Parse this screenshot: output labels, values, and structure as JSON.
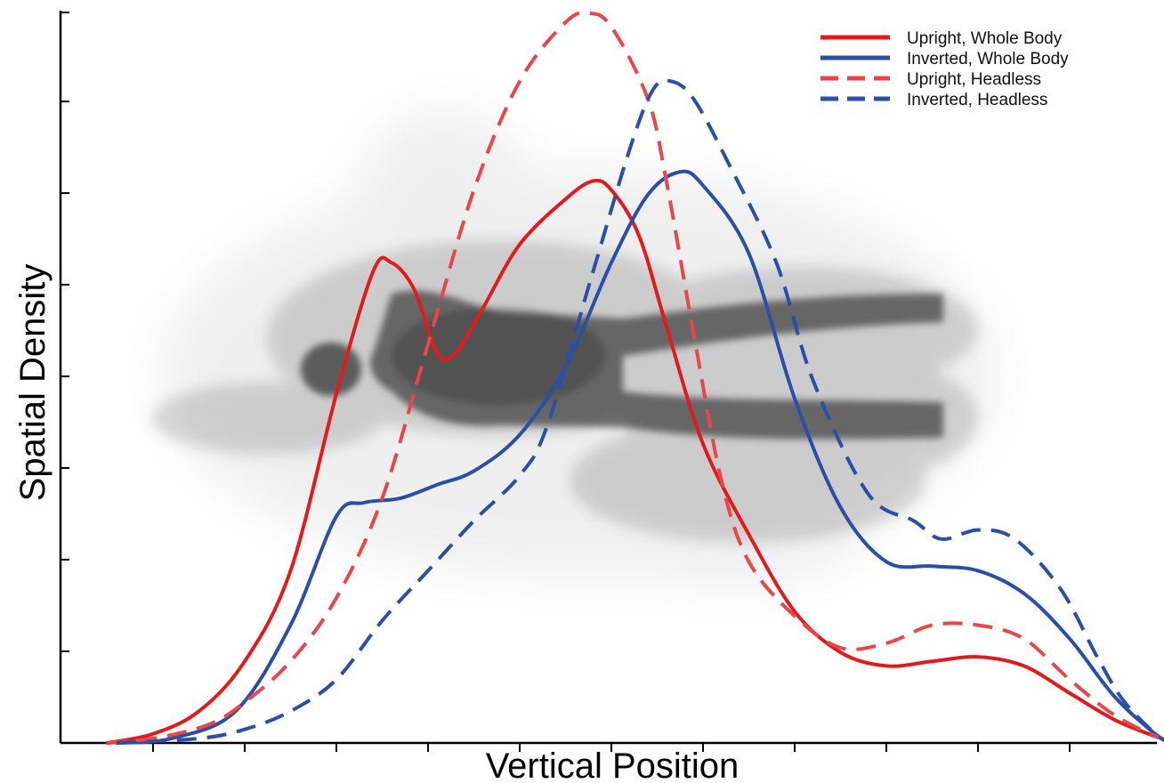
{
  "chart_data": {
    "type": "line",
    "xlabel": "Vertical Position",
    "ylabel": "Spatial Density",
    "x_ticks": [
      "",
      "",
      "",
      "",
      "",
      "",
      "",
      "",
      "",
      "",
      ""
    ],
    "y_ticks": [
      "",
      "",
      "",
      "",
      "",
      "",
      ""
    ],
    "xlim": [
      -0.5,
      11.3
    ],
    "ylim": [
      0,
      8
    ],
    "grid": false,
    "legend_position": "top-right",
    "background_image": "human-body-silhouette-density-heatmap",
    "series": [
      {
        "name": "Upright, Whole Body",
        "color": "#e31a1c",
        "style": "solid",
        "points": [
          [
            -0.5,
            0.0
          ],
          [
            0.0,
            0.1
          ],
          [
            0.5,
            0.35
          ],
          [
            1.0,
            0.9
          ],
          [
            1.5,
            1.9
          ],
          [
            2.0,
            3.85
          ],
          [
            2.4,
            5.2
          ],
          [
            2.6,
            5.3
          ],
          [
            2.85,
            5.0
          ],
          [
            3.1,
            4.3
          ],
          [
            3.3,
            4.3
          ],
          [
            3.6,
            4.8
          ],
          [
            4.0,
            5.5
          ],
          [
            4.5,
            6.0
          ],
          [
            4.8,
            6.2
          ],
          [
            5.0,
            6.1
          ],
          [
            5.3,
            5.6
          ],
          [
            5.6,
            4.6
          ],
          [
            6.0,
            3.3
          ],
          [
            6.5,
            2.3
          ],
          [
            7.0,
            1.45
          ],
          [
            7.5,
            1.0
          ],
          [
            8.0,
            0.85
          ],
          [
            8.5,
            0.9
          ],
          [
            9.0,
            0.95
          ],
          [
            9.5,
            0.85
          ],
          [
            10.0,
            0.55
          ],
          [
            10.5,
            0.25
          ],
          [
            11.0,
            0.05
          ],
          [
            11.2,
            0.0
          ]
        ]
      },
      {
        "name": "Inverted, Whole Body",
        "color": "#2b4fa6",
        "style": "solid",
        "points": [
          [
            -0.4,
            0.0
          ],
          [
            0.2,
            0.05
          ],
          [
            0.9,
            0.35
          ],
          [
            1.5,
            1.3
          ],
          [
            2.0,
            2.5
          ],
          [
            2.3,
            2.65
          ],
          [
            2.7,
            2.7
          ],
          [
            3.1,
            2.85
          ],
          [
            3.5,
            3.0
          ],
          [
            4.0,
            3.4
          ],
          [
            4.5,
            4.15
          ],
          [
            5.0,
            5.3
          ],
          [
            5.4,
            6.05
          ],
          [
            5.75,
            6.3
          ],
          [
            6.0,
            6.15
          ],
          [
            6.5,
            5.4
          ],
          [
            7.0,
            3.8
          ],
          [
            7.5,
            2.6
          ],
          [
            8.0,
            2.0
          ],
          [
            8.5,
            1.95
          ],
          [
            9.0,
            1.9
          ],
          [
            9.5,
            1.65
          ],
          [
            10.0,
            1.15
          ],
          [
            10.5,
            0.5
          ],
          [
            11.0,
            0.05
          ],
          [
            11.2,
            0.0
          ]
        ]
      },
      {
        "name": "Upright, Headless",
        "color": "#e8474a",
        "style": "dashed",
        "points": [
          [
            -0.5,
            0.0
          ],
          [
            0.0,
            0.05
          ],
          [
            0.6,
            0.2
          ],
          [
            1.0,
            0.45
          ],
          [
            1.5,
            0.9
          ],
          [
            2.0,
            1.6
          ],
          [
            2.5,
            2.7
          ],
          [
            3.0,
            4.4
          ],
          [
            3.5,
            6.1
          ],
          [
            4.0,
            7.3
          ],
          [
            4.5,
            7.95
          ],
          [
            4.75,
            8.05
          ],
          [
            5.0,
            7.9
          ],
          [
            5.4,
            7.1
          ],
          [
            5.6,
            6.2
          ],
          [
            5.9,
            4.5
          ],
          [
            6.2,
            2.9
          ],
          [
            6.5,
            2.0
          ],
          [
            7.0,
            1.4
          ],
          [
            7.5,
            1.05
          ],
          [
            8.0,
            1.1
          ],
          [
            8.5,
            1.3
          ],
          [
            9.0,
            1.3
          ],
          [
            9.5,
            1.15
          ],
          [
            10.0,
            0.7
          ],
          [
            10.5,
            0.3
          ],
          [
            11.0,
            0.05
          ],
          [
            11.2,
            0.0
          ]
        ]
      },
      {
        "name": "Inverted, Headless",
        "color": "#2b4fa6",
        "style": "dashed",
        "points": [
          [
            -0.4,
            0.0
          ],
          [
            0.5,
            0.05
          ],
          [
            1.0,
            0.15
          ],
          [
            1.5,
            0.35
          ],
          [
            2.0,
            0.7
          ],
          [
            2.5,
            1.35
          ],
          [
            3.0,
            1.9
          ],
          [
            3.5,
            2.45
          ],
          [
            4.0,
            2.95
          ],
          [
            4.3,
            3.5
          ],
          [
            4.8,
            5.2
          ],
          [
            5.2,
            6.55
          ],
          [
            5.45,
            7.2
          ],
          [
            5.65,
            7.3
          ],
          [
            5.9,
            7.1
          ],
          [
            6.3,
            6.35
          ],
          [
            6.8,
            5.3
          ],
          [
            7.2,
            4.0
          ],
          [
            7.8,
            2.75
          ],
          [
            8.3,
            2.45
          ],
          [
            8.6,
            2.25
          ],
          [
            9.0,
            2.35
          ],
          [
            9.4,
            2.25
          ],
          [
            9.9,
            1.7
          ],
          [
            10.3,
            0.95
          ],
          [
            10.6,
            0.45
          ],
          [
            11.0,
            0.05
          ],
          [
            11.2,
            0.0
          ]
        ]
      }
    ]
  }
}
